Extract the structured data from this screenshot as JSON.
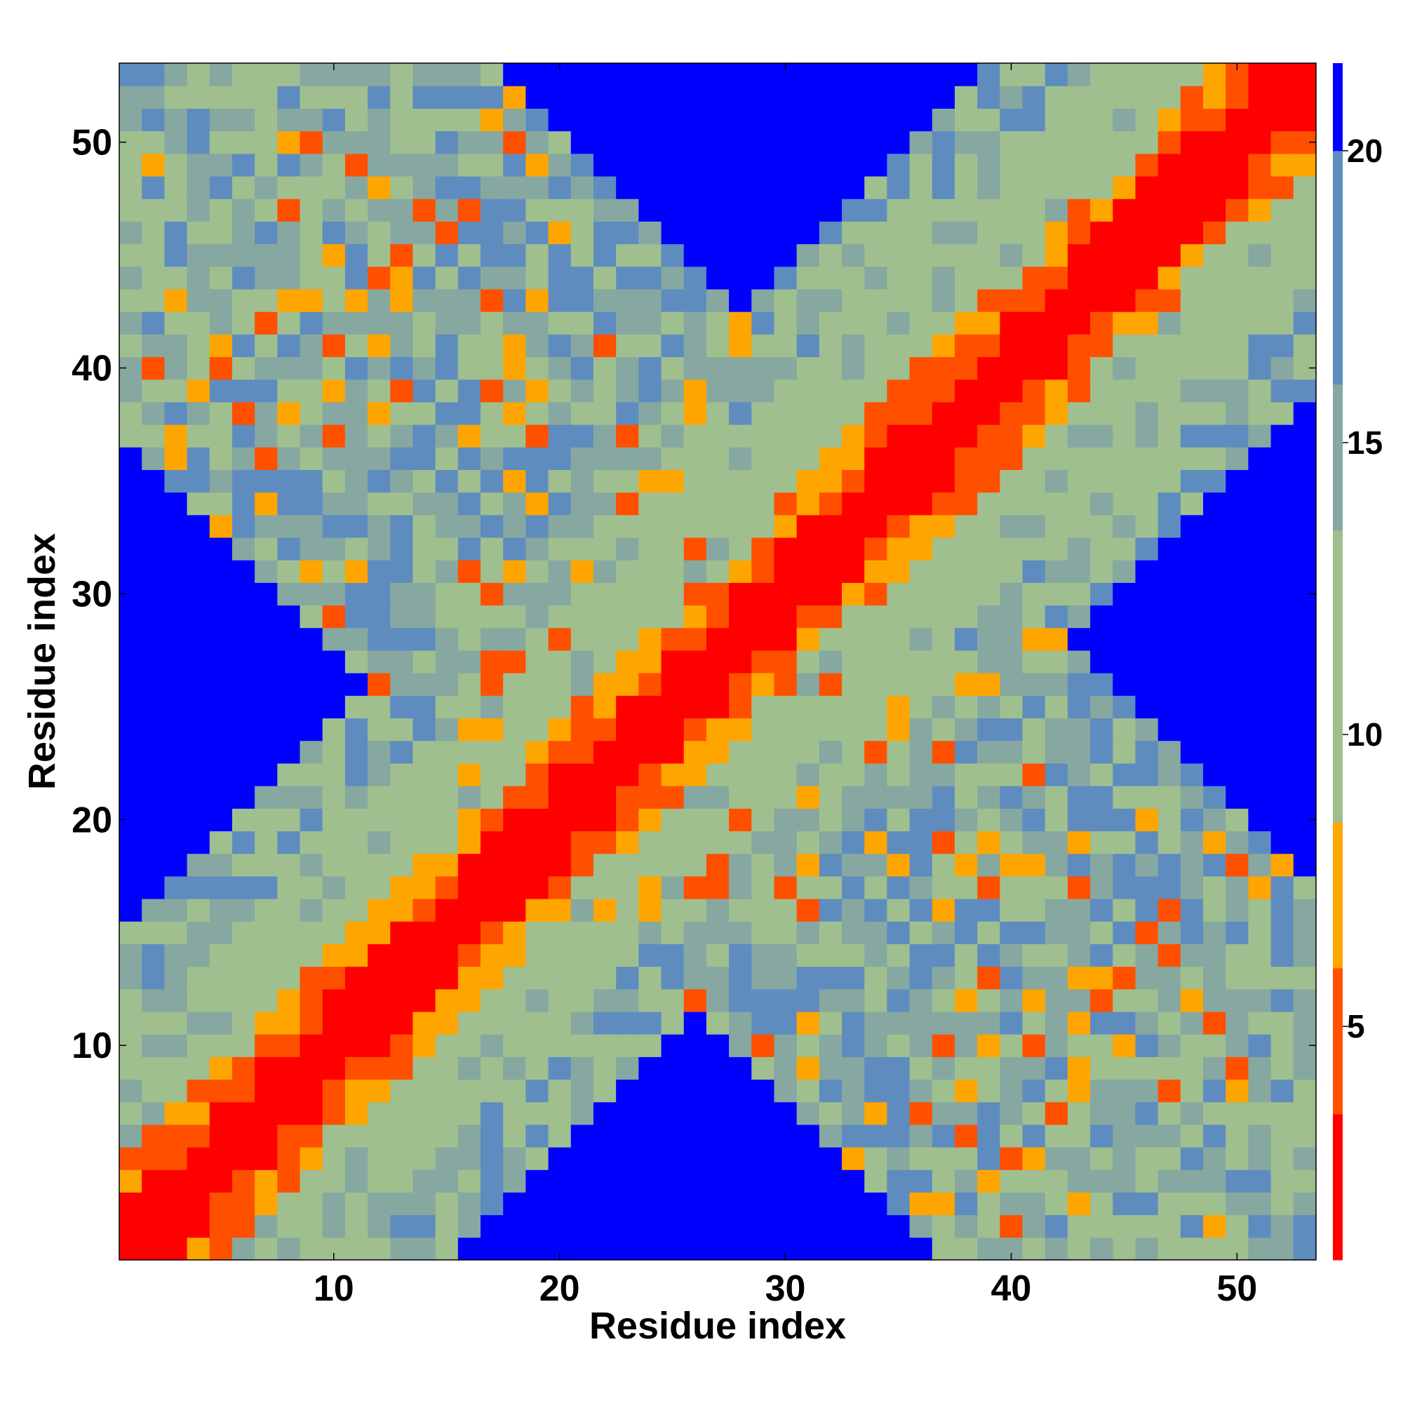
{
  "chart_data": {
    "type": "heatmap",
    "title": "",
    "xlabel": "Residue index",
    "ylabel": "Residue index",
    "n_residues": 53,
    "x_range": [
      0.5,
      53.5
    ],
    "y_range": [
      0.5,
      53.5
    ],
    "x_ticks": [
      10,
      20,
      30,
      40,
      50
    ],
    "y_ticks": [
      10,
      20,
      30,
      40,
      50
    ],
    "colorbar": {
      "range": [
        1,
        21.5
      ],
      "ticks": [
        5,
        10,
        15,
        20
      ],
      "color_bands": [
        {
          "from": 1,
          "to": 3.5,
          "color": "#ff0000"
        },
        {
          "from": 3.5,
          "to": 6,
          "color": "#ff5000"
        },
        {
          "from": 6,
          "to": 8.5,
          "color": "#ffa500"
        },
        {
          "from": 8.5,
          "to": 13.5,
          "color": "#9fbf8f"
        },
        {
          "from": 13.5,
          "to": 16,
          "color": "#86a8a0"
        },
        {
          "from": 16,
          "to": 20,
          "color": "#5f8cbf"
        },
        {
          "from": 20,
          "to": 21.5,
          "color": "#0000ff"
        }
      ]
    },
    "grid": false,
    "colors": {
      "diagonal": "#ff0000",
      "near": "#ff5000",
      "close": "#ffa500",
      "mid": "#9fbf8f",
      "far": "#86a8a0",
      "farther": "#5f8cbf",
      "out_of_range": "#0000ff"
    }
  }
}
